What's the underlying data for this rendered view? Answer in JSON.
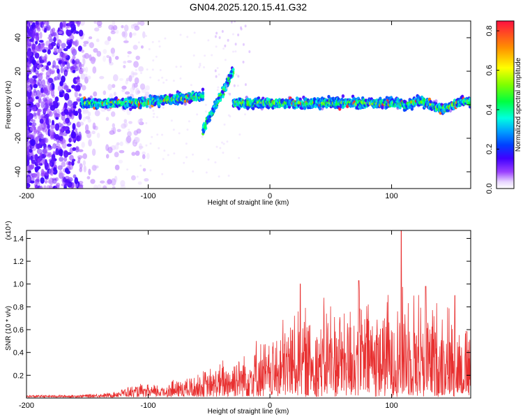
{
  "figure_title": "GN04.2025.120.15.41.G32",
  "chart_data": [
    {
      "type": "heatmap",
      "xlabel": "Height of straight line (km)",
      "ylabel": "Frequency (Hz)",
      "xlim": [
        -200,
        165
      ],
      "ylim": [
        -50,
        50
      ],
      "x_ticks": [
        "-200",
        "-100",
        "0",
        "100"
      ],
      "x_tick_values": [
        -200,
        -100,
        0,
        100
      ],
      "y_ticks": [
        "-40",
        "-20",
        "0",
        "20",
        "40"
      ],
      "y_tick_values": [
        -40,
        -20,
        0,
        20,
        40
      ],
      "colorbar": {
        "label": "Normalized spectral amplitude",
        "range": [
          0,
          0.85
        ],
        "ticks": [
          "0.0",
          "0.2",
          "0.4",
          "0.6",
          "0.8"
        ],
        "tick_values": [
          0.0,
          0.2,
          0.4,
          0.6,
          0.8
        ],
        "colormap": "rainbow (purple-blue-cyan-green-yellow-red)"
      },
      "features": [
        {
          "name": "noise region",
          "x_range": [
            -200,
            -120
          ],
          "freq_range": [
            -50,
            50
          ],
          "amplitude": 0.05
        },
        {
          "name": "main band",
          "x_range": [
            -155,
            165
          ],
          "center_freq": 1,
          "halfwidth": 3,
          "amplitude": 0.6
        },
        {
          "name": "diagonal streak",
          "x_range": [
            -55,
            -30
          ],
          "freq_range": [
            -15,
            20
          ],
          "amplitude": 0.4
        }
      ],
      "grid": false
    },
    {
      "type": "line",
      "xlabel": "Height of straight line (km)",
      "ylabel": "SNR (10 * v/v)",
      "y_multiplier": "(x10⁴)",
      "xlim": [
        -200,
        165
      ],
      "ylim": [
        0,
        1.47
      ],
      "x_ticks": [
        "-200",
        "-100",
        "0",
        "100"
      ],
      "x_tick_values": [
        -200,
        -100,
        0,
        100
      ],
      "y_ticks": [
        "0.2",
        "0.4",
        "0.6",
        "0.8",
        "1.0",
        "1.2",
        "1.4"
      ],
      "y_tick_values": [
        0.2,
        0.4,
        0.6,
        0.8,
        1.0,
        1.2,
        1.4
      ],
      "line_color": "#e83030",
      "envelope": {
        "x": [
          -200,
          -160,
          -130,
          -120,
          -110,
          -100,
          -90,
          -80,
          -70,
          -60,
          -50,
          -40,
          -30,
          -20,
          -10,
          0,
          10,
          20,
          30,
          40,
          50,
          60,
          70,
          80,
          90,
          100,
          110,
          120,
          130,
          140,
          150,
          165
        ],
        "y": [
          0.02,
          0.02,
          0.04,
          0.08,
          0.11,
          0.11,
          0.12,
          0.16,
          0.18,
          0.22,
          0.25,
          0.32,
          0.38,
          0.46,
          0.52,
          0.5,
          0.66,
          0.82,
          0.78,
          0.82,
          0.86,
          0.88,
          0.86,
          0.92,
          0.88,
          0.9,
          1.0,
          0.96,
          0.88,
          0.84,
          0.8,
          0.6
        ]
      },
      "peaks": [
        {
          "x": 25,
          "y": 1.0
        },
        {
          "x": 73,
          "y": 1.03
        },
        {
          "x": 108,
          "y": 1.47
        },
        {
          "x": 128,
          "y": 0.98
        },
        {
          "x": 152,
          "y": 0.9
        }
      ],
      "grid": false
    }
  ]
}
